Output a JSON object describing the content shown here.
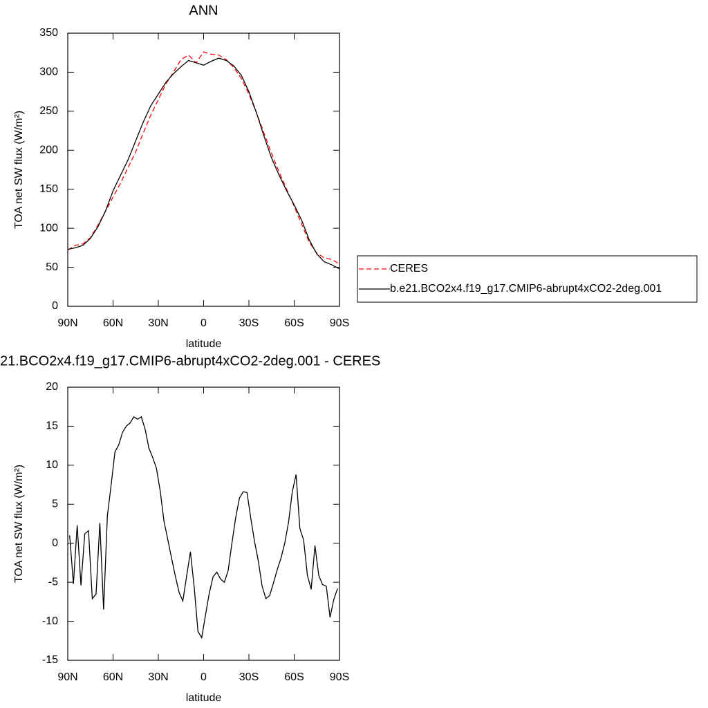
{
  "chart_data": [
    {
      "type": "line",
      "title": "ANN",
      "xlabel": "latitude",
      "ylabel": "TOA net SW flux (W/m²)",
      "x": [
        90,
        85,
        80,
        75,
        70,
        65,
        60,
        55,
        50,
        45,
        40,
        35,
        30,
        25,
        20,
        15,
        10,
        5,
        0,
        -5,
        -10,
        -15,
        -20,
        -25,
        -30,
        -35,
        -40,
        -45,
        -50,
        -55,
        -60,
        -65,
        -70,
        -75,
        -80,
        -85,
        -90
      ],
      "series": [
        {
          "name": "CERES",
          "color": "#ff0000",
          "line_style": "dashed",
          "values": [
            72,
            78,
            80,
            88,
            104,
            122,
            140,
            158,
            178,
            198,
            222,
            245,
            265,
            285,
            300,
            316,
            322,
            312,
            326,
            323,
            322,
            316,
            306,
            292,
            272,
            248,
            222,
            196,
            172,
            150,
            128,
            105,
            82,
            68,
            62,
            60,
            54
          ]
        },
        {
          "name": "b.e21.BCO2x4.f19_g17.CMIP6-abrupt4xCO2-2deg.001",
          "color": "#000000",
          "line_style": "solid",
          "values": [
            73,
            75,
            78,
            87,
            102,
            122,
            148,
            168,
            188,
            212,
            236,
            257,
            272,
            287,
            298,
            307,
            315,
            312,
            309,
            314,
            318,
            315,
            308,
            296,
            275,
            248,
            218,
            190,
            168,
            148,
            130,
            110,
            85,
            67,
            57,
            53,
            48
          ]
        }
      ],
      "xlim": [
        90,
        -90
      ],
      "xticks": [
        {
          "value": 90,
          "label": "90N"
        },
        {
          "value": 60,
          "label": "60N"
        },
        {
          "value": 30,
          "label": "30N"
        },
        0,
        {
          "value": -30,
          "label": "30S"
        },
        {
          "value": -60,
          "label": "60S"
        },
        {
          "value": -90,
          "label": "90S"
        }
      ],
      "ylim": [
        0,
        350
      ],
      "yticks": [
        0,
        50,
        100,
        150,
        200,
        250,
        300,
        350
      ],
      "legend": "right"
    },
    {
      "type": "line",
      "title": "21.BCO2x4.f19_g17.CMIP6-abrupt4xCO2-2deg.001 - CERES",
      "xlabel": "latitude",
      "ylabel": "TOA net SW flux (W/m²)",
      "x": [
        88.75,
        86.25,
        83.75,
        81.25,
        78.75,
        76.25,
        73.75,
        71.25,
        68.75,
        66.25,
        63.75,
        61.25,
        58.75,
        56.25,
        53.75,
        51.25,
        48.75,
        46.25,
        43.75,
        41.25,
        38.75,
        36.25,
        33.75,
        31.25,
        28.75,
        26.25,
        23.75,
        21.25,
        18.75,
        16.25,
        13.75,
        11.25,
        8.75,
        6.25,
        3.75,
        1.25,
        -1.25,
        -3.75,
        -6.25,
        -8.75,
        -11.25,
        -13.75,
        -16.25,
        -18.75,
        -21.25,
        -23.75,
        -26.25,
        -28.75,
        -31.25,
        -33.75,
        -36.25,
        -38.75,
        -41.25,
        -43.75,
        -46.25,
        -48.75,
        -51.25,
        -53.75,
        -56.25,
        -58.75,
        -61.25,
        -63.75,
        -66.25,
        -68.75,
        -71.25,
        -73.75,
        -76.25,
        -78.75,
        -81.25,
        -83.75,
        -86.25,
        -88.75
      ],
      "color": "#000000",
      "values": [
        1.0,
        -5.2,
        2.3,
        -5.4,
        1.2,
        1.6,
        -7.1,
        -6.5,
        2.6,
        -8.5,
        3.5,
        7.5,
        11.7,
        12.6,
        14.2,
        15.0,
        15.4,
        16.2,
        15.9,
        16.2,
        14.6,
        12.2,
        11.0,
        9.6,
        6.7,
        2.8,
        0.5,
        -1.9,
        -4.2,
        -6.3,
        -7.4,
        -4.2,
        -1.1,
        -5.6,
        -11.3,
        -12.1,
        -9.2,
        -6.4,
        -4.3,
        -3.7,
        -4.6,
        -5.0,
        -3.5,
        0.0,
        3.3,
        5.8,
        6.6,
        6.5,
        3.2,
        0.2,
        -2.3,
        -5.5,
        -7.1,
        -6.7,
        -5.1,
        -3.4,
        -1.9,
        0.0,
        2.7,
        6.6,
        8.8,
        1.9,
        0.4,
        -4.1,
        -5.9,
        -0.3,
        -4.1,
        -5.3,
        -5.5,
        -9.5,
        -7.2,
        -5.8
      ],
      "xlim": [
        90,
        -90
      ],
      "xticks": [
        {
          "value": 90,
          "label": "90N"
        },
        {
          "value": 60,
          "label": "60N"
        },
        {
          "value": 30,
          "label": "30N"
        },
        0,
        {
          "value": -30,
          "label": "30S"
        },
        {
          "value": -60,
          "label": "60S"
        },
        {
          "value": -90,
          "label": "90S"
        }
      ],
      "ylim": [
        -15,
        20
      ],
      "yticks": [
        -15,
        -10,
        -5,
        0,
        5,
        10,
        15,
        20
      ]
    }
  ]
}
